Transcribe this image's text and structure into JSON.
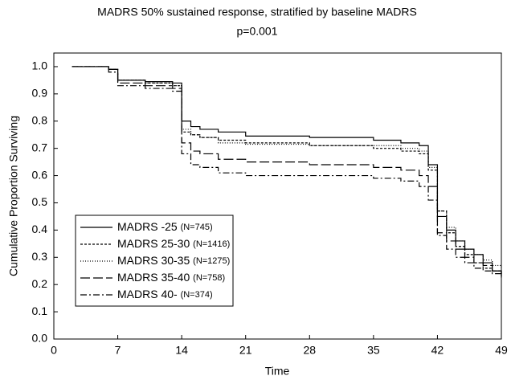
{
  "chart_data": {
    "type": "step",
    "title": "MADRS 50% sustained response, stratified by baseline MADRS",
    "subtitle": "p=0.001",
    "x_label": "Time",
    "y_label": "Cumulative Proportion Surviving",
    "x": [
      2,
      5,
      6,
      7,
      10,
      13,
      14,
      15,
      16,
      18,
      21,
      28,
      35,
      38,
      40,
      41,
      42,
      43,
      44,
      45,
      46,
      47,
      48,
      49
    ],
    "series": [
      {
        "name": "MADRS -25",
        "note": "(N=745)",
        "color": "#000000",
        "dash": "none",
        "values": [
          1.0,
          1.0,
          0.99,
          0.95,
          0.945,
          0.94,
          0.8,
          0.78,
          0.77,
          0.76,
          0.745,
          0.74,
          0.73,
          0.72,
          0.71,
          0.64,
          0.45,
          0.4,
          0.36,
          0.33,
          0.31,
          0.28,
          0.25,
          0.23
        ]
      },
      {
        "name": "MADRS 25-30",
        "note": "(N=1416)",
        "color": "#000000",
        "dash": "3,2",
        "values": [
          1.0,
          1.0,
          0.99,
          0.95,
          0.94,
          0.93,
          0.76,
          0.75,
          0.74,
          0.73,
          0.72,
          0.71,
          0.7,
          0.69,
          0.68,
          0.62,
          0.47,
          0.39,
          0.34,
          0.31,
          0.28,
          0.26,
          0.25,
          0.24
        ]
      },
      {
        "name": "MADRS 30-35",
        "note": "(N=1275)",
        "color": "#000000",
        "dash": "1,2",
        "values": [
          1.0,
          1.0,
          0.99,
          0.95,
          0.94,
          0.93,
          0.77,
          0.75,
          0.74,
          0.72,
          0.715,
          0.71,
          0.71,
          0.7,
          0.69,
          0.63,
          0.47,
          0.41,
          0.36,
          0.33,
          0.31,
          0.29,
          0.27,
          0.26
        ]
      },
      {
        "name": "MADRS 35-40",
        "note": "(N=758)",
        "color": "#000000",
        "dash": "12,4",
        "values": [
          1.0,
          1.0,
          0.99,
          0.94,
          0.93,
          0.92,
          0.72,
          0.69,
          0.68,
          0.66,
          0.65,
          0.64,
          0.63,
          0.62,
          0.6,
          0.56,
          0.39,
          0.36,
          0.33,
          0.3,
          0.28,
          0.27,
          0.25,
          0.23
        ]
      },
      {
        "name": "MADRS 40-",
        "note": "(N=374)",
        "color": "#000000",
        "dash": "8,3,2,3",
        "values": [
          1.0,
          1.0,
          0.98,
          0.93,
          0.92,
          0.91,
          0.68,
          0.64,
          0.63,
          0.61,
          0.6,
          0.6,
          0.59,
          0.58,
          0.56,
          0.51,
          0.38,
          0.33,
          0.3,
          0.28,
          0.26,
          0.25,
          0.24,
          0.22
        ]
      }
    ],
    "xlim": [
      0,
      49
    ],
    "xticks": [
      0,
      7,
      14,
      21,
      28,
      35,
      42,
      49
    ],
    "ylim": [
      0,
      1.05
    ],
    "yticks": [
      {
        "value": 0,
        "label": "0.0"
      },
      0.1,
      0.2,
      0.3,
      0.4,
      0.5,
      0.6,
      0.7,
      0.8,
      0.9,
      {
        "value": 1,
        "label": "1.0"
      }
    ],
    "legend": "lower-left"
  }
}
